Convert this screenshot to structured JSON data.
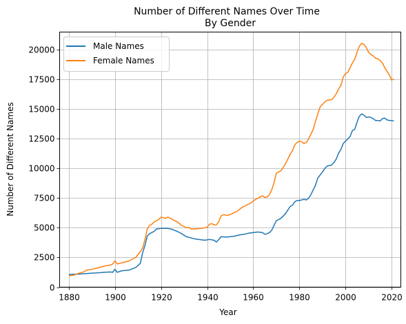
{
  "chart_data": {
    "type": "line",
    "title": "Number of Different Names Over Time",
    "subtitle": "By Gender",
    "xlabel": "Year",
    "ylabel": "Number of Different Names",
    "xlim": [
      1876,
      2024
    ],
    "ylim": [
      0,
      21500
    ],
    "xticks": [
      1880,
      1900,
      1920,
      1940,
      1960,
      1980,
      2000,
      2020
    ],
    "yticks": [
      0,
      2500,
      5000,
      7500,
      10000,
      12500,
      15000,
      17500,
      20000
    ],
    "grid": true,
    "legend_position": "top-left",
    "series": [
      {
        "name": "Male Names",
        "color": "#1f77b4",
        "points": [
          [
            1880,
            1060
          ],
          [
            1882,
            1080
          ],
          [
            1884,
            1100
          ],
          [
            1886,
            1120
          ],
          [
            1888,
            1150
          ],
          [
            1890,
            1180
          ],
          [
            1892,
            1200
          ],
          [
            1894,
            1230
          ],
          [
            1896,
            1260
          ],
          [
            1898,
            1280
          ],
          [
            1899,
            1250
          ],
          [
            1900,
            1500
          ],
          [
            1901,
            1250
          ],
          [
            1903,
            1380
          ],
          [
            1906,
            1430
          ],
          [
            1909,
            1650
          ],
          [
            1911,
            2000
          ],
          [
            1912,
            2900
          ],
          [
            1913,
            3500
          ],
          [
            1914,
            4300
          ],
          [
            1915,
            4500
          ],
          [
            1916,
            4600
          ],
          [
            1917,
            4700
          ],
          [
            1918,
            4900
          ],
          [
            1920,
            4950
          ],
          [
            1923,
            4950
          ],
          [
            1925,
            4850
          ],
          [
            1927,
            4700
          ],
          [
            1929,
            4500
          ],
          [
            1931,
            4250
          ],
          [
            1933,
            4150
          ],
          [
            1935,
            4050
          ],
          [
            1937,
            4000
          ],
          [
            1939,
            3950
          ],
          [
            1941,
            4020
          ],
          [
            1943,
            3950
          ],
          [
            1944,
            3800
          ],
          [
            1945,
            4000
          ],
          [
            1946,
            4250
          ],
          [
            1948,
            4220
          ],
          [
            1950,
            4250
          ],
          [
            1952,
            4300
          ],
          [
            1954,
            4400
          ],
          [
            1956,
            4450
          ],
          [
            1958,
            4550
          ],
          [
            1960,
            4600
          ],
          [
            1962,
            4650
          ],
          [
            1963,
            4620
          ],
          [
            1964,
            4600
          ],
          [
            1965,
            4450
          ],
          [
            1966,
            4500
          ],
          [
            1967,
            4600
          ],
          [
            1968,
            4800
          ],
          [
            1969,
            5200
          ],
          [
            1970,
            5600
          ],
          [
            1972,
            5800
          ],
          [
            1974,
            6200
          ],
          [
            1976,
            6800
          ],
          [
            1977,
            6900
          ],
          [
            1978,
            7200
          ],
          [
            1979,
            7300
          ],
          [
            1980,
            7300
          ],
          [
            1981,
            7350
          ],
          [
            1982,
            7400
          ],
          [
            1983,
            7350
          ],
          [
            1984,
            7500
          ],
          [
            1985,
            7800
          ],
          [
            1986,
            8200
          ],
          [
            1987,
            8600
          ],
          [
            1988,
            9200
          ],
          [
            1990,
            9700
          ],
          [
            1991,
            10000
          ],
          [
            1992,
            10200
          ],
          [
            1994,
            10300
          ],
          [
            1995,
            10500
          ],
          [
            1996,
            10800
          ],
          [
            1997,
            11300
          ],
          [
            1998,
            11600
          ],
          [
            1999,
            12100
          ],
          [
            2000,
            12300
          ],
          [
            2001,
            12500
          ],
          [
            2002,
            12700
          ],
          [
            2003,
            13200
          ],
          [
            2004,
            13300
          ],
          [
            2005,
            13900
          ],
          [
            2006,
            14400
          ],
          [
            2007,
            14600
          ],
          [
            2008,
            14500
          ],
          [
            2009,
            14300
          ],
          [
            2010,
            14350
          ],
          [
            2011,
            14300
          ],
          [
            2012,
            14200
          ],
          [
            2013,
            14050
          ],
          [
            2014,
            14050
          ],
          [
            2015,
            14000
          ],
          [
            2016,
            14200
          ],
          [
            2017,
            14250
          ],
          [
            2018,
            14100
          ],
          [
            2019,
            14050
          ],
          [
            2020,
            14050
          ],
          [
            2021,
            14000
          ]
        ]
      },
      {
        "name": "Female Names",
        "color": "#ff7f0e",
        "points": [
          [
            1880,
            950
          ],
          [
            1882,
            1000
          ],
          [
            1884,
            1150
          ],
          [
            1886,
            1250
          ],
          [
            1888,
            1450
          ],
          [
            1890,
            1500
          ],
          [
            1892,
            1600
          ],
          [
            1894,
            1700
          ],
          [
            1896,
            1800
          ],
          [
            1898,
            1850
          ],
          [
            1899,
            1950
          ],
          [
            1900,
            2200
          ],
          [
            1901,
            1950
          ],
          [
            1903,
            2050
          ],
          [
            1906,
            2200
          ],
          [
            1909,
            2500
          ],
          [
            1911,
            3000
          ],
          [
            1912,
            3300
          ],
          [
            1913,
            4000
          ],
          [
            1914,
            4900
          ],
          [
            1915,
            5200
          ],
          [
            1916,
            5300
          ],
          [
            1917,
            5500
          ],
          [
            1918,
            5600
          ],
          [
            1919,
            5700
          ],
          [
            1920,
            5900
          ],
          [
            1922,
            5800
          ],
          [
            1923,
            5900
          ],
          [
            1925,
            5700
          ],
          [
            1927,
            5500
          ],
          [
            1929,
            5200
          ],
          [
            1931,
            5000
          ],
          [
            1932,
            5050
          ],
          [
            1933,
            4900
          ],
          [
            1935,
            4900
          ],
          [
            1937,
            4950
          ],
          [
            1939,
            5000
          ],
          [
            1940,
            5050
          ],
          [
            1941,
            5300
          ],
          [
            1942,
            5350
          ],
          [
            1943,
            5250
          ],
          [
            1944,
            5250
          ],
          [
            1945,
            5500
          ],
          [
            1946,
            6000
          ],
          [
            1947,
            6100
          ],
          [
            1949,
            6050
          ],
          [
            1951,
            6200
          ],
          [
            1953,
            6400
          ],
          [
            1955,
            6700
          ],
          [
            1957,
            6900
          ],
          [
            1959,
            7100
          ],
          [
            1961,
            7400
          ],
          [
            1963,
            7600
          ],
          [
            1964,
            7700
          ],
          [
            1965,
            7550
          ],
          [
            1966,
            7600
          ],
          [
            1967,
            7800
          ],
          [
            1968,
            8200
          ],
          [
            1969,
            8800
          ],
          [
            1970,
            9600
          ],
          [
            1972,
            9800
          ],
          [
            1974,
            10400
          ],
          [
            1976,
            11200
          ],
          [
            1977,
            11500
          ],
          [
            1978,
            12000
          ],
          [
            1979,
            12200
          ],
          [
            1980,
            12300
          ],
          [
            1981,
            12250
          ],
          [
            1982,
            12100
          ],
          [
            1983,
            12200
          ],
          [
            1984,
            12500
          ],
          [
            1985,
            12900
          ],
          [
            1986,
            13300
          ],
          [
            1987,
            14000
          ],
          [
            1988,
            14600
          ],
          [
            1989,
            15200
          ],
          [
            1990,
            15400
          ],
          [
            1991,
            15600
          ],
          [
            1992,
            15750
          ],
          [
            1994,
            15800
          ],
          [
            1995,
            16000
          ],
          [
            1996,
            16300
          ],
          [
            1997,
            16700
          ],
          [
            1998,
            17000
          ],
          [
            1999,
            17700
          ],
          [
            2000,
            18000
          ],
          [
            2001,
            18100
          ],
          [
            2002,
            18500
          ],
          [
            2003,
            18900
          ],
          [
            2004,
            19200
          ],
          [
            2005,
            19800
          ],
          [
            2006,
            20300
          ],
          [
            2007,
            20550
          ],
          [
            2008,
            20450
          ],
          [
            2009,
            20200
          ],
          [
            2010,
            19800
          ],
          [
            2011,
            19600
          ],
          [
            2012,
            19500
          ],
          [
            2013,
            19300
          ],
          [
            2014,
            19250
          ],
          [
            2015,
            19100
          ],
          [
            2016,
            18900
          ],
          [
            2017,
            18500
          ],
          [
            2018,
            18200
          ],
          [
            2019,
            17900
          ],
          [
            2020,
            17450
          ],
          [
            2021,
            17550
          ]
        ]
      }
    ]
  }
}
